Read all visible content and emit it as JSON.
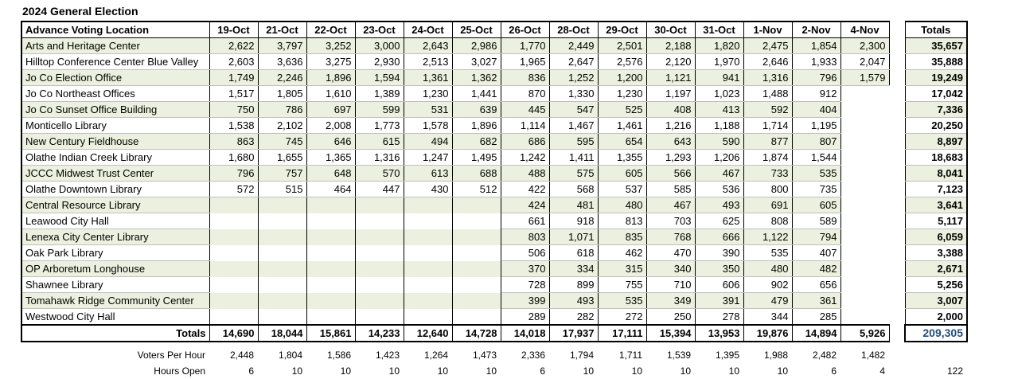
{
  "title": "2024 General Election",
  "table": {
    "location_header": "Advance Voting Location",
    "dates": [
      "19-Oct",
      "21-Oct",
      "22-Oct",
      "23-Oct",
      "24-Oct",
      "25-Oct",
      "26-Oct",
      "28-Oct",
      "29-Oct",
      "30-Oct",
      "31-Oct",
      "1-Nov",
      "2-Nov",
      "4-Nov"
    ],
    "totals_header": "Totals",
    "rows": [
      {
        "location": "Arts and Heritage Center",
        "values": [
          "2,622",
          "3,797",
          "3,252",
          "3,000",
          "2,643",
          "2,986",
          "1,770",
          "2,449",
          "2,501",
          "2,188",
          "1,820",
          "2,475",
          "1,854",
          "2,300"
        ],
        "total": "35,657"
      },
      {
        "location": "Hilltop Conference Center Blue Valley",
        "values": [
          "2,603",
          "3,636",
          "3,275",
          "2,930",
          "2,513",
          "3,027",
          "1,965",
          "2,647",
          "2,576",
          "2,120",
          "1,970",
          "2,646",
          "1,933",
          "2,047"
        ],
        "total": "35,888"
      },
      {
        "location": "Jo Co Election Office",
        "values": [
          "1,749",
          "2,246",
          "1,896",
          "1,594",
          "1,361",
          "1,362",
          "836",
          "1,252",
          "1,200",
          "1,121",
          "941",
          "1,316",
          "796",
          "1,579"
        ],
        "total": "19,249"
      },
      {
        "location": "Jo Co Northeast Offices",
        "values": [
          "1,517",
          "1,805",
          "1,610",
          "1,389",
          "1,230",
          "1,441",
          "870",
          "1,330",
          "1,230",
          "1,197",
          "1,023",
          "1,488",
          "912",
          ""
        ],
        "total": "17,042"
      },
      {
        "location": "Jo Co Sunset Office Building",
        "values": [
          "750",
          "786",
          "697",
          "599",
          "531",
          "639",
          "445",
          "547",
          "525",
          "408",
          "413",
          "592",
          "404",
          ""
        ],
        "total": "7,336"
      },
      {
        "location": "Monticello Library",
        "values": [
          "1,538",
          "2,102",
          "2,008",
          "1,773",
          "1,578",
          "1,896",
          "1,114",
          "1,467",
          "1,461",
          "1,216",
          "1,188",
          "1,714",
          "1,195",
          ""
        ],
        "total": "20,250"
      },
      {
        "location": "New Century Fieldhouse",
        "values": [
          "863",
          "745",
          "646",
          "615",
          "494",
          "682",
          "686",
          "595",
          "654",
          "643",
          "590",
          "877",
          "807",
          ""
        ],
        "total": "8,897"
      },
      {
        "location": "Olathe Indian Creek Library",
        "values": [
          "1,680",
          "1,655",
          "1,365",
          "1,316",
          "1,247",
          "1,495",
          "1,242",
          "1,411",
          "1,355",
          "1,293",
          "1,206",
          "1,874",
          "1,544",
          ""
        ],
        "total": "18,683"
      },
      {
        "location": "JCCC Midwest Trust Center",
        "values": [
          "796",
          "757",
          "648",
          "570",
          "613",
          "688",
          "488",
          "575",
          "605",
          "566",
          "467",
          "733",
          "535",
          ""
        ],
        "total": "8,041"
      },
      {
        "location": "Olathe Downtown Library",
        "values": [
          "572",
          "515",
          "464",
          "447",
          "430",
          "512",
          "422",
          "568",
          "537",
          "585",
          "536",
          "800",
          "735",
          ""
        ],
        "total": "7,123"
      },
      {
        "location": "Central Resource Library",
        "values": [
          "",
          "",
          "",
          "",
          "",
          "",
          "424",
          "481",
          "480",
          "467",
          "493",
          "691",
          "605",
          ""
        ],
        "total": "3,641"
      },
      {
        "location": "Leawood City Hall",
        "values": [
          "",
          "",
          "",
          "",
          "",
          "",
          "661",
          "918",
          "813",
          "703",
          "625",
          "808",
          "589",
          ""
        ],
        "total": "5,117"
      },
      {
        "location": "Lenexa City Center Library",
        "values": [
          "",
          "",
          "",
          "",
          "",
          "",
          "803",
          "1,071",
          "835",
          "768",
          "666",
          "1,122",
          "794",
          ""
        ],
        "total": "6,059"
      },
      {
        "location": "Oak Park Library",
        "values": [
          "",
          "",
          "",
          "",
          "",
          "",
          "506",
          "618",
          "462",
          "470",
          "390",
          "535",
          "407",
          ""
        ],
        "total": "3,388"
      },
      {
        "location": "OP Arboretum Longhouse",
        "values": [
          "",
          "",
          "",
          "",
          "",
          "",
          "370",
          "334",
          "315",
          "340",
          "350",
          "480",
          "482",
          ""
        ],
        "total": "2,671"
      },
      {
        "location": "Shawnee Library",
        "values": [
          "",
          "",
          "",
          "",
          "",
          "",
          "728",
          "899",
          "755",
          "710",
          "606",
          "902",
          "656",
          ""
        ],
        "total": "5,256"
      },
      {
        "location": "Tomahawk Ridge Community Center",
        "values": [
          "",
          "",
          "",
          "",
          "",
          "",
          "399",
          "493",
          "535",
          "349",
          "391",
          "479",
          "361",
          ""
        ],
        "total": "3,007"
      },
      {
        "location": "Westwood City Hall",
        "values": [
          "",
          "",
          "",
          "",
          "",
          "",
          "289",
          "282",
          "272",
          "250",
          "278",
          "344",
          "285",
          ""
        ],
        "total": "2,000"
      }
    ],
    "totals_row": {
      "label": "Totals",
      "values": [
        "14,690",
        "18,044",
        "15,861",
        "14,233",
        "12,640",
        "14,728",
        "14,018",
        "17,937",
        "17,111",
        "15,394",
        "13,953",
        "19,876",
        "14,894",
        "5,926"
      ],
      "grand_total": "209,305"
    }
  },
  "stats": {
    "voters_per_hour": {
      "label": "Voters Per Hour",
      "values": [
        "2,448",
        "1,804",
        "1,586",
        "1,423",
        "1,264",
        "1,473",
        "2,336",
        "1,794",
        "1,711",
        "1,539",
        "1,395",
        "1,988",
        "2,482",
        "1,482"
      ],
      "total": ""
    },
    "hours_open": {
      "label": "Hours Open",
      "values": [
        "6",
        "10",
        "10",
        "10",
        "10",
        "10",
        "6",
        "10",
        "10",
        "10",
        "10",
        "10",
        "6",
        "4"
      ],
      "total": "122"
    }
  },
  "colors": {
    "row_tint": "#ebf1de",
    "grand_total_text": "#1f4e79",
    "row_divider": "#bfbfbf"
  }
}
